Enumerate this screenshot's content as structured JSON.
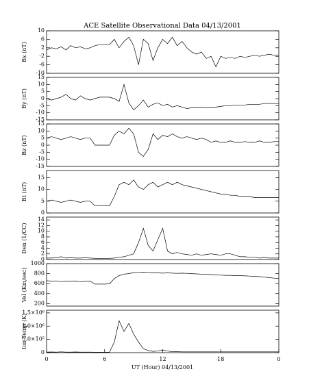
{
  "title": "ACE Satellite Observational Data   04/13/2001",
  "xlabel": "UT (Hour)  04/13/2001",
  "chart_data": [
    {
      "type": "line",
      "ylabel": "Bx (nT)",
      "ylim": [
        -10,
        10
      ],
      "yticks": [
        -10,
        -6,
        -2,
        2,
        6,
        10
      ],
      "xlim": [
        0,
        24
      ],
      "x": [
        0,
        0.5,
        1,
        1.5,
        2,
        2.5,
        3,
        3.5,
        4,
        4.5,
        5,
        5.5,
        6,
        6.5,
        7,
        7.5,
        8,
        8.5,
        9,
        9.5,
        10,
        10.5,
        11,
        11.5,
        12,
        12.5,
        13,
        13.5,
        14,
        14.5,
        15,
        15.5,
        16,
        16.5,
        17,
        17.5,
        18,
        18.5,
        19,
        19.5,
        20,
        20.5,
        21,
        21.5,
        22,
        22.5,
        23,
        23.5,
        24
      ],
      "values": [
        1,
        2,
        1.5,
        2.5,
        1,
        3,
        2,
        2.5,
        1.5,
        2,
        3,
        3.5,
        3.5,
        3.5,
        6,
        2,
        5,
        7,
        3,
        -6,
        6,
        4,
        -4,
        2,
        6,
        4,
        7,
        3,
        5,
        2,
        0,
        -1,
        0,
        -3,
        -2,
        -7,
        -2,
        -3,
        -2.5,
        -3,
        -2,
        -2.5,
        -2,
        -1.5,
        -2,
        -1.5,
        -1,
        -1.5,
        -1.5
      ]
    },
    {
      "type": "line",
      "ylabel": "By (nT)",
      "ylim": [
        -15,
        15
      ],
      "yticks": [
        -15,
        -10,
        -5,
        0,
        5,
        10,
        15
      ],
      "xlim": [
        0,
        24
      ],
      "x": [
        0,
        0.5,
        1,
        1.5,
        2,
        2.5,
        3,
        3.5,
        4,
        4.5,
        5,
        5.5,
        6,
        6.5,
        7,
        7.5,
        8,
        8.5,
        9,
        9.5,
        10,
        10.5,
        11,
        11.5,
        12,
        12.5,
        13,
        13.5,
        14,
        14.5,
        15,
        15.5,
        16,
        16.5,
        17,
        17.5,
        18,
        18.5,
        19,
        19.5,
        20,
        20.5,
        21,
        21.5,
        22,
        22.5,
        23,
        23.5,
        24
      ],
      "values": [
        0,
        -1,
        0,
        1,
        3,
        0,
        -1,
        2,
        0,
        -1,
        0,
        1,
        1,
        1,
        0,
        -2,
        10,
        -3,
        -8,
        -5,
        -1,
        -6,
        -4,
        -3,
        -5,
        -4,
        -6,
        -5,
        -6,
        -7,
        -6.5,
        -6,
        -6,
        -6.5,
        -6,
        -6,
        -5.5,
        -5,
        -5,
        -4.5,
        -4.5,
        -4.5,
        -4,
        -4,
        -4,
        -3.5,
        -3.5,
        -3.5,
        -3.5
      ]
    },
    {
      "type": "line",
      "ylabel": "Bz (nT)",
      "ylim": [
        -15,
        15
      ],
      "yticks": [
        -15,
        -10,
        -5,
        0,
        5,
        10,
        15
      ],
      "xlim": [
        0,
        24
      ],
      "x": [
        0,
        0.5,
        1,
        1.5,
        2,
        2.5,
        3,
        3.5,
        4,
        4.5,
        5,
        5.5,
        6,
        6.5,
        7,
        7.5,
        8,
        8.5,
        9,
        9.5,
        10,
        10.5,
        11,
        11.5,
        12,
        12.5,
        13,
        13.5,
        14,
        14.5,
        15,
        15.5,
        16,
        16.5,
        17,
        17.5,
        18,
        18.5,
        19,
        19.5,
        20,
        20.5,
        21,
        21.5,
        22,
        22.5,
        23,
        23.5,
        24
      ],
      "values": [
        5,
        6,
        5,
        4,
        5,
        6,
        5,
        4,
        5,
        5,
        0,
        0,
        0,
        0,
        7,
        10,
        8,
        12,
        8,
        -5,
        -8,
        -3,
        8,
        4,
        7,
        6,
        8,
        6,
        5,
        6,
        5,
        4,
        5,
        4,
        2,
        3,
        2,
        2,
        3,
        2,
        2,
        2.5,
        2,
        2,
        3,
        2,
        2,
        2.5,
        2.5
      ]
    },
    {
      "type": "line",
      "ylabel": "Bt (nT)",
      "ylim": [
        0,
        18
      ],
      "yticks": [
        0,
        5,
        10,
        15
      ],
      "xlim": [
        0,
        24
      ],
      "x": [
        0,
        0.5,
        1,
        1.5,
        2,
        2.5,
        3,
        3.5,
        4,
        4.5,
        5,
        5.5,
        6,
        6.5,
        7,
        7.5,
        8,
        8.5,
        9,
        9.5,
        10,
        10.5,
        11,
        11.5,
        12,
        12.5,
        13,
        13.5,
        14,
        14.5,
        15,
        15.5,
        16,
        16.5,
        17,
        17.5,
        18,
        18.5,
        19,
        19.5,
        20,
        20.5,
        21,
        21.5,
        22,
        22.5,
        23,
        23.5,
        24
      ],
      "values": [
        5,
        5.5,
        5,
        4.5,
        5,
        5.5,
        5,
        4.5,
        5,
        5,
        3,
        3,
        3,
        3,
        7,
        12,
        13,
        12,
        14,
        11,
        10,
        12,
        13,
        11,
        12,
        13,
        12,
        13,
        12,
        11.5,
        11,
        10.5,
        10,
        9.5,
        9,
        8.5,
        8,
        8,
        7.5,
        7.5,
        7,
        7,
        7,
        6.5,
        6.5,
        6.5,
        6.5,
        6.5,
        6.5
      ]
    },
    {
      "type": "line",
      "ylabel": "Den (1/CC)",
      "ylim": [
        0,
        15
      ],
      "yticks": [
        0,
        2,
        4,
        6,
        8,
        10,
        12,
        14
      ],
      "xlim": [
        0,
        24
      ],
      "x": [
        0,
        0.5,
        1,
        1.5,
        2,
        2.5,
        3,
        3.5,
        4,
        4.5,
        5,
        5.5,
        6,
        6.5,
        7,
        7.5,
        8,
        8.5,
        9,
        9.5,
        10,
        10.5,
        11,
        11.5,
        12,
        12.5,
        13,
        13.5,
        14,
        14.5,
        15,
        15.5,
        16,
        16.5,
        17,
        17.5,
        18,
        18.5,
        19,
        19.5,
        20,
        20.5,
        21,
        21.5,
        22,
        22.5,
        23,
        23.5,
        24
      ],
      "values": [
        0.5,
        0.5,
        0.6,
        1,
        0.5,
        0.6,
        0.5,
        0.5,
        0.6,
        0.5,
        0.4,
        0.4,
        0.4,
        0.4,
        0.5,
        0.8,
        1,
        1.5,
        2,
        6,
        11,
        5,
        3,
        7,
        11,
        3,
        2,
        2.5,
        2,
        1.8,
        1.5,
        2,
        1.5,
        1.8,
        2,
        1.8,
        1.5,
        2,
        2,
        1.5,
        1,
        1,
        0.8,
        0.8,
        0.5,
        0.6,
        0.5,
        0.5,
        0.5
      ]
    },
    {
      "type": "line",
      "ylabel": "Vel (Km/sec)",
      "ylim": [
        150,
        1000
      ],
      "yticks": [
        200,
        400,
        600,
        800,
        1000
      ],
      "xlim": [
        0,
        24
      ],
      "x": [
        0,
        0.5,
        1,
        1.5,
        2,
        2.5,
        3,
        3.5,
        4,
        4.5,
        5,
        5.5,
        6,
        6.5,
        7,
        7.5,
        8,
        8.5,
        9,
        9.5,
        10,
        10.5,
        11,
        11.5,
        12,
        12.5,
        13,
        13.5,
        14,
        14.5,
        15,
        15.5,
        16,
        16.5,
        17,
        17.5,
        18,
        18.5,
        19,
        19.5,
        20,
        20.5,
        21,
        21.5,
        22,
        22.5,
        23,
        23.5,
        24
      ],
      "values": [
        660,
        650,
        655,
        640,
        650,
        645,
        650,
        640,
        645,
        650,
        590,
        590,
        590,
        595,
        700,
        760,
        790,
        800,
        820,
        825,
        830,
        825,
        820,
        815,
        810,
        815,
        810,
        805,
        810,
        805,
        800,
        795,
        790,
        785,
        780,
        775,
        770,
        765,
        765,
        760,
        760,
        755,
        750,
        745,
        740,
        730,
        720,
        710,
        700
      ]
    },
    {
      "type": "line",
      "ylabel": "Ion Temp (K)",
      "ylim": [
        0,
        1600000
      ],
      "yticks": [
        0,
        {
          "value": 500000,
          "label": "5.0×10⁵"
        },
        {
          "value": 1000000,
          "label": "1.0×10⁶"
        },
        {
          "value": 1500000,
          "label": "1.5×10⁶"
        }
      ],
      "xlim": [
        0,
        24
      ],
      "xticks": [
        0,
        6,
        12,
        18,
        {
          "value": 24,
          "label": "0"
        }
      ],
      "x": [
        0,
        0.5,
        1,
        1.5,
        2,
        2.5,
        3,
        3.5,
        4,
        4.5,
        5,
        5.5,
        6,
        6.5,
        7,
        7.5,
        8,
        8.5,
        9,
        9.5,
        10,
        10.5,
        11,
        11.5,
        12,
        12.5,
        13,
        13.5,
        14,
        14.5,
        15,
        15.5,
        16,
        16.5,
        17,
        17.5,
        18,
        18.5,
        19,
        19.5,
        20,
        20.5,
        21,
        21.5,
        22,
        22.5,
        23,
        23.5,
        24
      ],
      "values": [
        20000,
        25000,
        20000,
        30000,
        20000,
        20000,
        25000,
        20000,
        20000,
        20000,
        15000,
        15000,
        15000,
        15000,
        400000,
        1200000,
        800000,
        1100000,
        700000,
        400000,
        150000,
        80000,
        50000,
        60000,
        100000,
        60000,
        40000,
        35000,
        30000,
        30000,
        30000,
        30000,
        30000,
        30000,
        30000,
        30000,
        30000,
        30000,
        30000,
        30000,
        30000,
        30000,
        30000,
        30000,
        30000,
        30000,
        30000,
        30000,
        30000
      ]
    }
  ]
}
